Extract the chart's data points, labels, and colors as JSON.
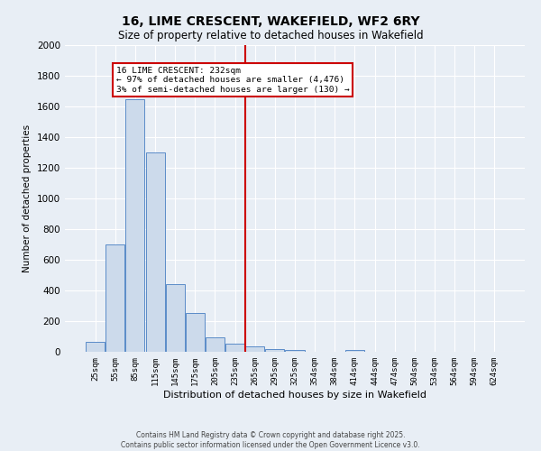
{
  "title_line1": "16, LIME CRESCENT, WAKEFIELD, WF2 6RY",
  "title_line2": "Size of property relative to detached houses in Wakefield",
  "xlabel": "Distribution of detached houses by size in Wakefield",
  "ylabel": "Number of detached properties",
  "bar_labels": [
    "25sqm",
    "55sqm",
    "85sqm",
    "115sqm",
    "145sqm",
    "175sqm",
    "205sqm",
    "235sqm",
    "265sqm",
    "295sqm",
    "325sqm",
    "354sqm",
    "384sqm",
    "414sqm",
    "444sqm",
    "474sqm",
    "504sqm",
    "534sqm",
    "564sqm",
    "594sqm",
    "624sqm"
  ],
  "bar_values": [
    65,
    700,
    1650,
    1300,
    440,
    255,
    95,
    55,
    35,
    20,
    10,
    0,
    0,
    12,
    0,
    0,
    0,
    0,
    0,
    0,
    0
  ],
  "bar_color": "#ccdaeb",
  "bar_edge_color": "#5b8cc8",
  "vline_x_idx": 7.5,
  "vline_color": "#cc0000",
  "annotation_title": "16 LIME CRESCENT: 232sqm",
  "annotation_line1": "← 97% of detached houses are smaller (4,476)",
  "annotation_line2": "3% of semi-detached houses are larger (130) →",
  "annotation_box_color": "#ffffff",
  "annotation_box_edge": "#cc0000",
  "ylim": [
    0,
    2000
  ],
  "yticks": [
    0,
    200,
    400,
    600,
    800,
    1000,
    1200,
    1400,
    1600,
    1800,
    2000
  ],
  "background_color": "#e8eef5",
  "grid_color": "#ffffff",
  "footer_line1": "Contains HM Land Registry data © Crown copyright and database right 2025.",
  "footer_line2": "Contains public sector information licensed under the Open Government Licence v3.0."
}
